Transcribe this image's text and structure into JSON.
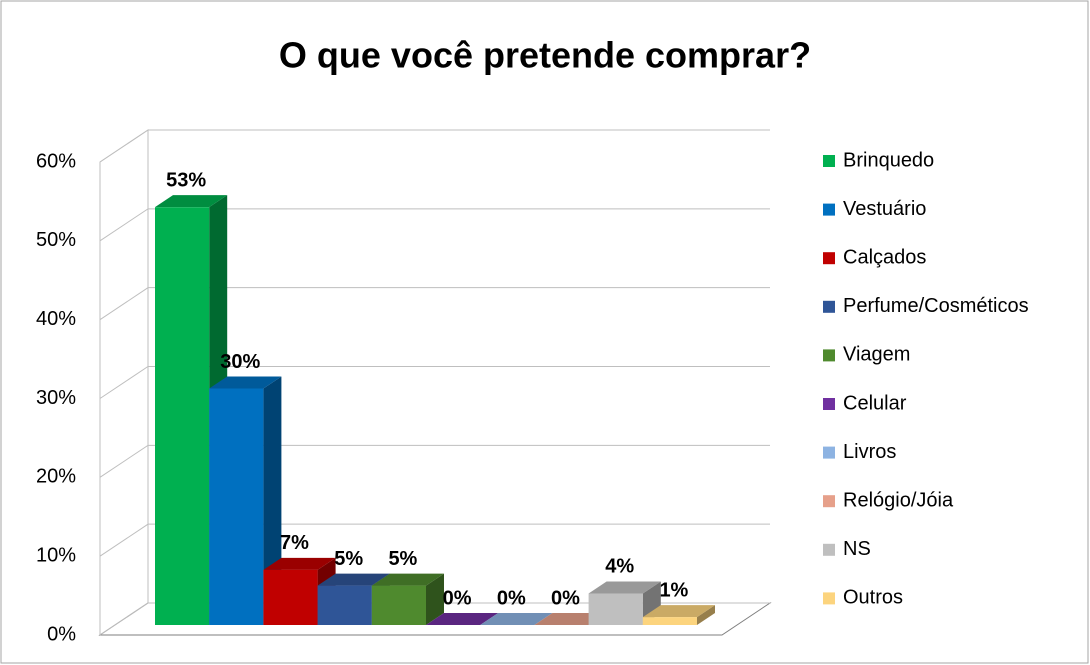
{
  "chart_data": {
    "type": "bar3d",
    "title": "O que você pretende comprar?",
    "ylim": [
      0,
      60
    ],
    "yticks": [
      {
        "value": 0,
        "label": "0%"
      },
      {
        "value": 10,
        "label": "10%"
      },
      {
        "value": 20,
        "label": "20%"
      },
      {
        "value": 30,
        "label": "30%"
      },
      {
        "value": 40,
        "label": "40%"
      },
      {
        "value": 50,
        "label": "50%"
      },
      {
        "value": 60,
        "label": "60%"
      }
    ],
    "grid": true,
    "legend": "right",
    "series": [
      {
        "name": "Brinquedo",
        "color": "#00b050",
        "values": [
          53
        ],
        "value_labels": [
          "53%"
        ]
      },
      {
        "name": "Vestuário",
        "color": "#0070c0",
        "values": [
          30
        ],
        "value_labels": [
          "30%"
        ]
      },
      {
        "name": "Calçados",
        "color": "#c00000",
        "values": [
          7
        ],
        "value_labels": [
          "7%"
        ]
      },
      {
        "name": "Perfume/Cosméticos",
        "color": "#2f5597",
        "values": [
          5
        ],
        "value_labels": [
          "5%"
        ]
      },
      {
        "name": "Viagem",
        "color": "#4f8a2e",
        "values": [
          5
        ],
        "value_labels": [
          "5%"
        ]
      },
      {
        "name": "Celular",
        "color": "#7030a0",
        "values": [
          0
        ],
        "value_labels": [
          "0%"
        ]
      },
      {
        "name": "Livros",
        "color": "#8db3e2",
        "values": [
          0
        ],
        "value_labels": [
          "0%"
        ]
      },
      {
        "name": "Relógio/Jóia",
        "color": "#e6a08a",
        "values": [
          0
        ],
        "value_labels": [
          "0%"
        ]
      },
      {
        "name": "NS",
        "color": "#bfbfbf",
        "values": [
          4
        ],
        "value_labels": [
          "4%"
        ]
      },
      {
        "name": "Outros",
        "color": "#fcd47e",
        "values": [
          1
        ],
        "value_labels": [
          "1%"
        ]
      }
    ]
  }
}
